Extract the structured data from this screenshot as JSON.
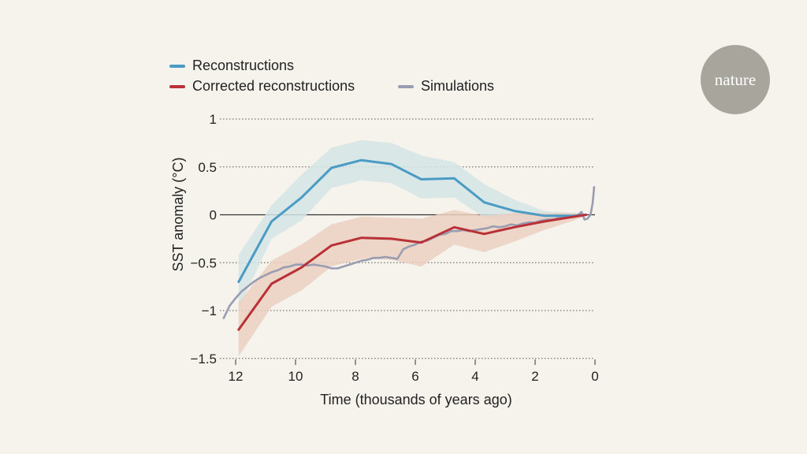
{
  "logo": {
    "text": "nature"
  },
  "chart_data": {
    "type": "line",
    "xlabel": "Time (thousands of years ago)",
    "ylabel": "SST anomaly (°C)",
    "xlim": [
      12.5,
      0
    ],
    "ylim": [
      -1.5,
      1
    ],
    "x_reversed": true,
    "x_ticks": [
      12,
      10,
      8,
      6,
      4,
      2,
      0
    ],
    "x_tick_labels": [
      "12",
      "10",
      "8",
      "6",
      "4",
      "2",
      "0"
    ],
    "y_ticks": [
      1,
      0.5,
      0,
      -0.5,
      -1,
      -1.5
    ],
    "y_tick_labels": [
      "1",
      "0.5",
      "0",
      "−0.5",
      "−1",
      "−1.5"
    ],
    "grid": "horizontal dotted",
    "zero_line": true,
    "legend_position": "top-left",
    "series": [
      {
        "name": "Reconstructions",
        "color": "#4a9cc5",
        "band_color": "#d5e4e6",
        "x": [
          11.9,
          10.8,
          9.8,
          8.8,
          7.8,
          6.8,
          5.8,
          4.7,
          3.7,
          2.7,
          1.7,
          0.7,
          0.3
        ],
        "values": [
          -0.7,
          -0.07,
          0.18,
          0.49,
          0.57,
          0.53,
          0.37,
          0.38,
          0.13,
          0.04,
          -0.01,
          -0.01,
          0.0
        ],
        "upper": [
          -0.42,
          0.1,
          0.42,
          0.7,
          0.78,
          0.75,
          0.62,
          0.55,
          0.32,
          0.16,
          0.04,
          0.02,
          0.01
        ],
        "lower": [
          -0.98,
          -0.25,
          -0.06,
          0.28,
          0.36,
          0.33,
          0.17,
          0.18,
          -0.03,
          -0.07,
          -0.05,
          -0.04,
          -0.01
        ]
      },
      {
        "name": "Corrected reconstructions",
        "color": "#b93136",
        "band_color": "#ebcfc2",
        "x": [
          11.9,
          10.8,
          9.8,
          8.8,
          7.8,
          6.8,
          5.8,
          4.7,
          3.7,
          2.7,
          1.7,
          0.7,
          0.3
        ],
        "values": [
          -1.2,
          -0.72,
          -0.55,
          -0.32,
          -0.24,
          -0.25,
          -0.29,
          -0.13,
          -0.2,
          -0.13,
          -0.07,
          -0.02,
          0.0
        ],
        "upper": [
          -0.92,
          -0.48,
          -0.31,
          -0.1,
          -0.02,
          -0.03,
          -0.04,
          0.05,
          -0.01,
          0.02,
          0.02,
          0.02,
          0.01
        ],
        "lower": [
          -1.48,
          -0.96,
          -0.79,
          -0.54,
          -0.46,
          -0.47,
          -0.54,
          -0.31,
          -0.39,
          -0.28,
          -0.16,
          -0.06,
          -0.01
        ]
      },
      {
        "name": "Simulations",
        "color": "#9a9db2",
        "x": [
          12.4,
          12.2,
          12.0,
          11.8,
          11.6,
          11.4,
          11.2,
          11.0,
          10.8,
          10.6,
          10.4,
          10.2,
          10.0,
          9.8,
          9.6,
          9.4,
          9.2,
          9.0,
          8.8,
          8.6,
          8.4,
          8.2,
          8.0,
          7.8,
          7.6,
          7.4,
          7.2,
          7.0,
          6.8,
          6.6,
          6.4,
          6.2,
          6.0,
          5.8,
          5.6,
          5.4,
          5.2,
          5.0,
          4.8,
          4.6,
          4.4,
          4.2,
          4.0,
          3.8,
          3.6,
          3.4,
          3.2,
          3.0,
          2.8,
          2.6,
          2.4,
          2.2,
          2.0,
          1.8,
          1.6,
          1.4,
          1.2,
          1.0,
          0.8,
          0.6,
          0.45,
          0.35,
          0.25,
          0.15,
          0.08,
          0.03
        ],
        "values": [
          -1.08,
          -0.95,
          -0.87,
          -0.8,
          -0.75,
          -0.7,
          -0.66,
          -0.63,
          -0.6,
          -0.58,
          -0.55,
          -0.54,
          -0.52,
          -0.52,
          -0.53,
          -0.52,
          -0.53,
          -0.54,
          -0.56,
          -0.56,
          -0.54,
          -0.52,
          -0.5,
          -0.48,
          -0.47,
          -0.45,
          -0.45,
          -0.44,
          -0.45,
          -0.46,
          -0.36,
          -0.33,
          -0.31,
          -0.28,
          -0.27,
          -0.24,
          -0.21,
          -0.2,
          -0.17,
          -0.17,
          -0.16,
          -0.17,
          -0.16,
          -0.15,
          -0.14,
          -0.12,
          -0.13,
          -0.12,
          -0.1,
          -0.11,
          -0.09,
          -0.08,
          -0.08,
          -0.06,
          -0.05,
          -0.05,
          -0.03,
          -0.03,
          -0.02,
          -0.01,
          0.03,
          -0.05,
          -0.04,
          0.0,
          0.12,
          0.29
        ]
      }
    ]
  }
}
